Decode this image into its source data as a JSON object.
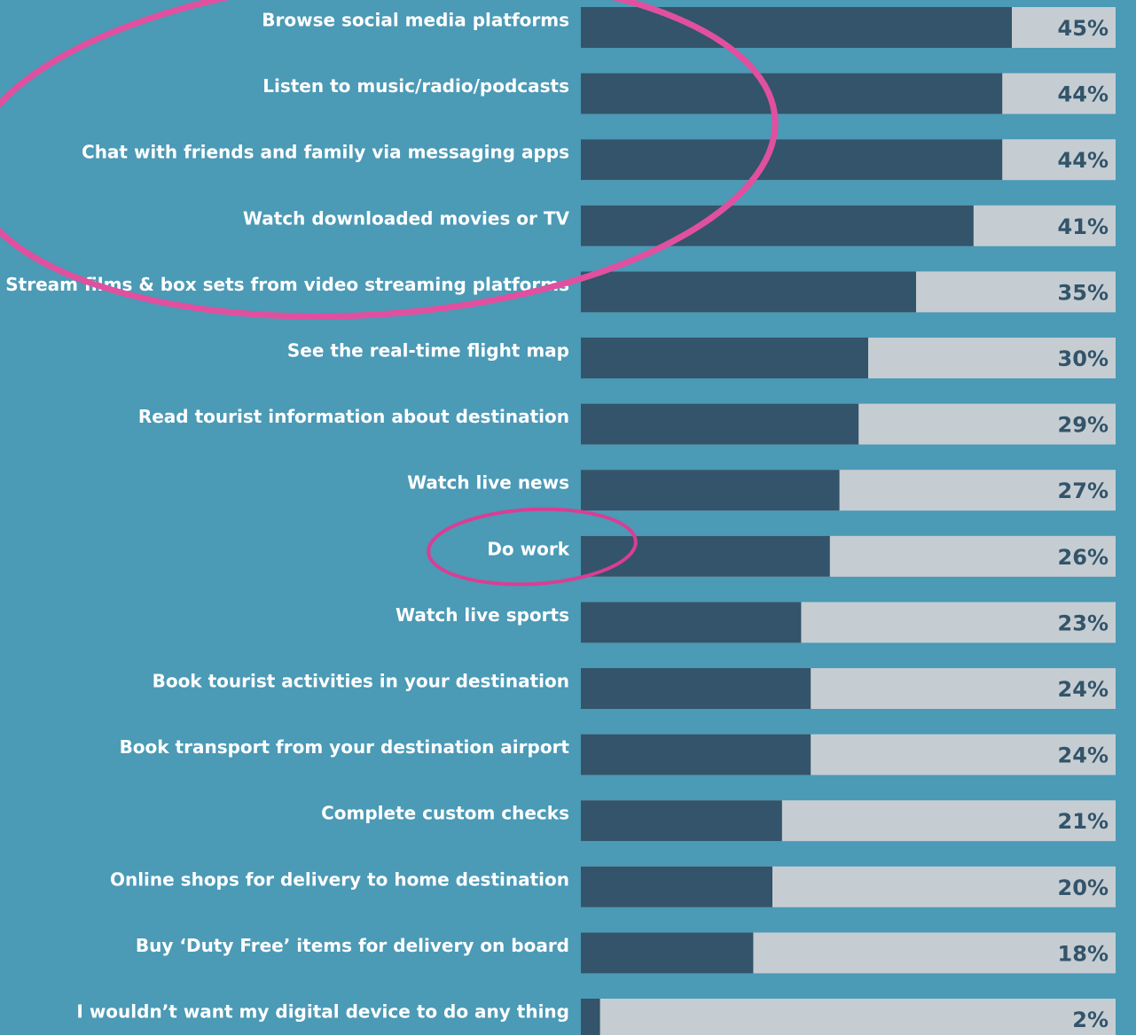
{
  "chart_data": {
    "type": "bar",
    "orientation": "horizontal",
    "categories": [
      "Browse social media platforms",
      "Listen to music/radio/podcasts",
      "Chat with friends and family via messaging apps",
      "Watch downloaded movies or TV",
      "Stream films & box sets from video streaming platforms",
      "See the real-time flight map",
      "Read tourist information about destination",
      "Watch live news",
      "Do work",
      "Watch live sports",
      "Book tourist activities in your destination",
      "Book transport from your destination airport",
      "Complete custom checks",
      "Online shops for delivery to home destination",
      "Buy ‘Duty Free’ items for delivery on board",
      "I wouldn’t want my digital device to do any thing"
    ],
    "values": [
      45,
      44,
      44,
      41,
      35,
      30,
      29,
      27,
      26,
      23,
      24,
      24,
      21,
      20,
      18,
      2
    ],
    "value_labels": [
      "45%",
      "44%",
      "44%",
      "41%",
      "35%",
      "30%",
      "29%",
      "27%",
      "26%",
      "23%",
      "24%",
      "24%",
      "21%",
      "20%",
      "18%",
      "2%"
    ],
    "color": "#33546a",
    "track_color": "#c5cdd2"
  }
}
